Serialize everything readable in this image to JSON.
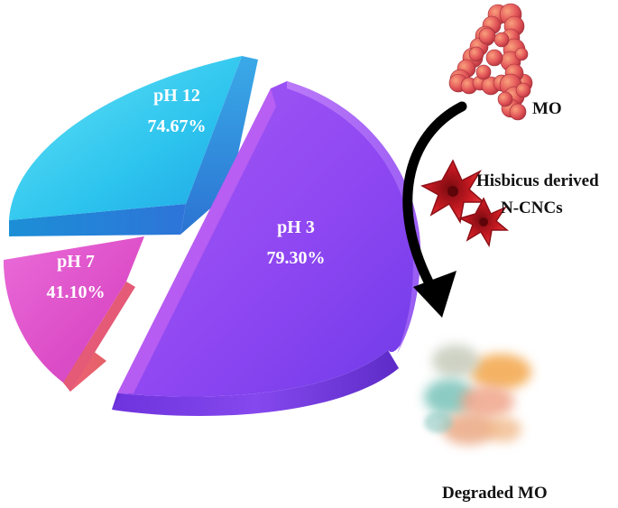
{
  "chart_data": {
    "type": "pie",
    "title": "",
    "slices": [
      {
        "label": "pH 3",
        "value_text": "79.30%",
        "value": 79.3,
        "color": "#8A4BF0"
      },
      {
        "label": "pH 12",
        "value_text": "74.67%",
        "value": 74.67,
        "color": "#2FC6EE"
      },
      {
        "label": "pH 7",
        "value_text": "41.10%",
        "value": 41.1,
        "color": "#E253C8"
      }
    ]
  },
  "scheme": {
    "pollutant_label": "MO",
    "catalyst_label_line1": "Hisbicus derived",
    "catalyst_label_line2": "N-CNCs",
    "product_label": "Degraded MO"
  }
}
